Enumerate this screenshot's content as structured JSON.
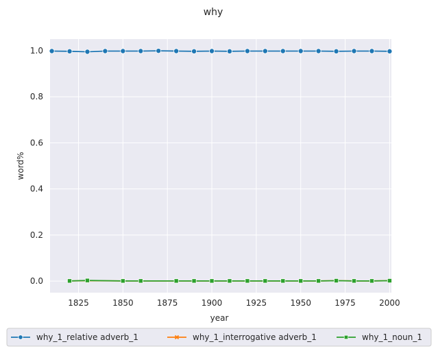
{
  "chart_data": {
    "type": "line",
    "title": "why",
    "xlabel": "year",
    "ylabel": "word%",
    "xlim": [
      1809,
      2001
    ],
    "ylim": [
      -0.05,
      1.05
    ],
    "x_ticks": [
      1825,
      1850,
      1875,
      1900,
      1925,
      1950,
      1975,
      2000
    ],
    "y_ticks": [
      0.0,
      0.2,
      0.4,
      0.6,
      0.8,
      1.0
    ],
    "grid": true,
    "legend_position": "bottom",
    "series": [
      {
        "name": "why_1_relative adverb_1",
        "color": "#1f77b4",
        "marker": "circle",
        "x": [
          1810,
          1820,
          1830,
          1840,
          1850,
          1860,
          1870,
          1880,
          1890,
          1900,
          1910,
          1920,
          1930,
          1940,
          1950,
          1960,
          1970,
          1980,
          1990,
          2000
        ],
        "y": [
          0.998,
          0.997,
          0.995,
          0.998,
          0.998,
          0.998,
          0.999,
          0.998,
          0.997,
          0.998,
          0.997,
          0.998,
          0.998,
          0.998,
          0.998,
          0.998,
          0.997,
          0.998,
          0.998,
          0.997
        ]
      },
      {
        "name": "why_1_interrogative adverb_1",
        "color": "#ff7f0e",
        "marker": "x",
        "x": [
          1820,
          1830,
          1850,
          1860,
          1880,
          1890,
          1900,
          1910,
          1920,
          1930,
          1940,
          1950,
          1960,
          1970,
          1980,
          1990,
          2000
        ],
        "y": [
          0.001,
          0.002,
          0.001,
          0.001,
          0.001,
          0.001,
          0.001,
          0.001,
          0.001,
          0.001,
          0.001,
          0.001,
          0.001,
          0.002,
          0.001,
          0.001,
          0.002
        ]
      },
      {
        "name": "why_1_noun_1",
        "color": "#2ca02c",
        "marker": "square",
        "x": [
          1820,
          1830,
          1850,
          1860,
          1880,
          1890,
          1900,
          1910,
          1920,
          1930,
          1940,
          1950,
          1960,
          1970,
          1980,
          1990,
          2000
        ],
        "y": [
          0.001,
          0.003,
          0.001,
          0.001,
          0.001,
          0.001,
          0.001,
          0.001,
          0.001,
          0.001,
          0.001,
          0.001,
          0.001,
          0.002,
          0.001,
          0.001,
          0.002
        ]
      }
    ]
  }
}
